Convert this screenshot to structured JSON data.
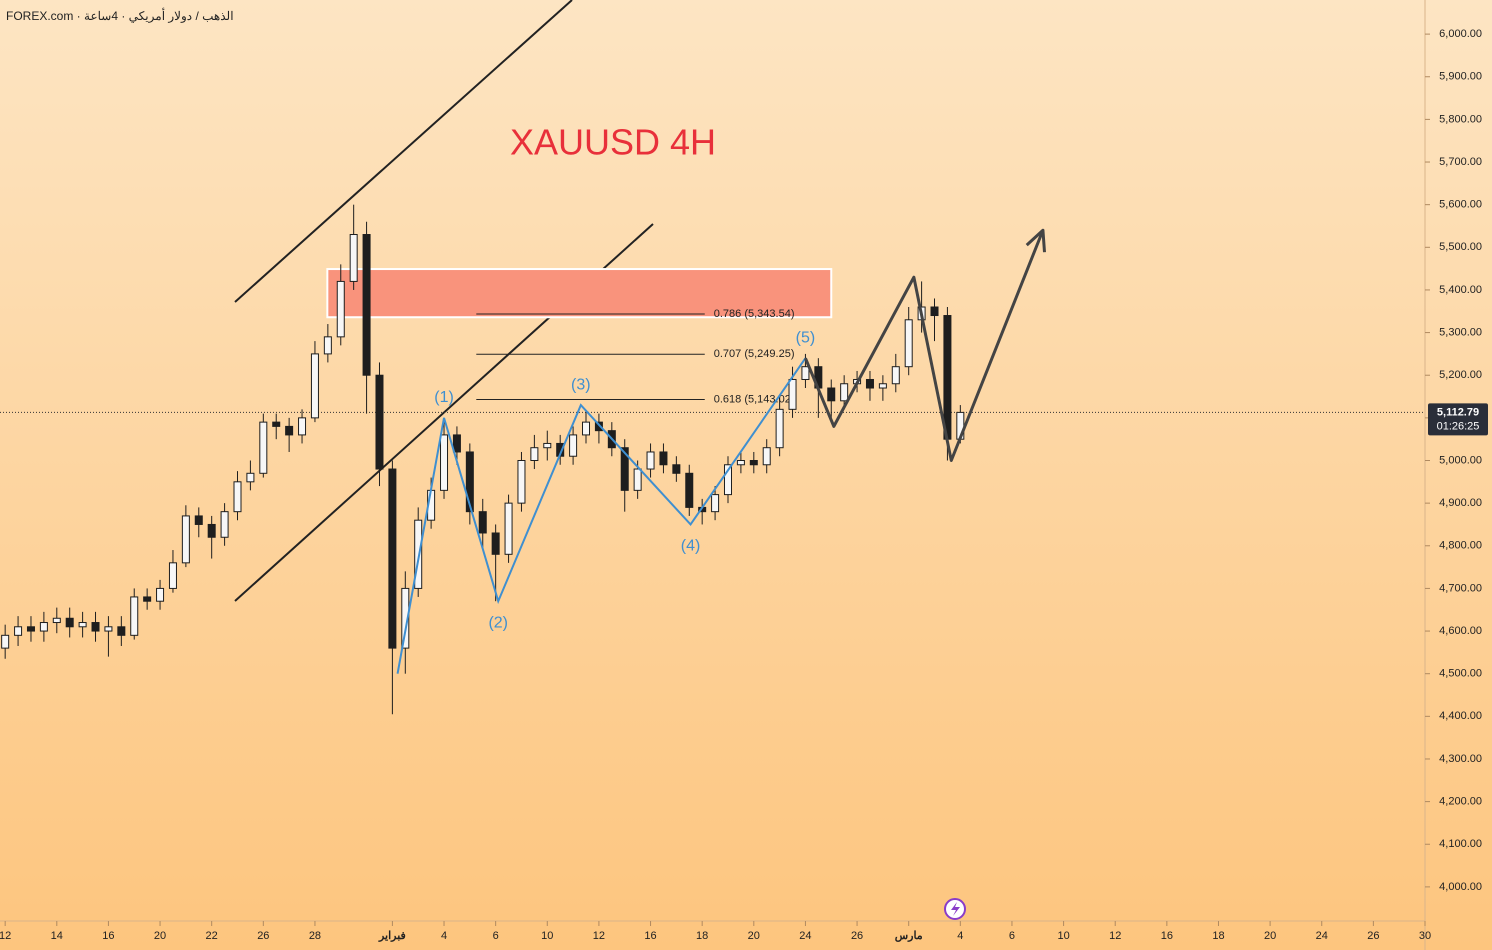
{
  "chart_data": {
    "type": "candlestick",
    "source": "FOREX.com · الذهب / دولار أمريكي · 4ساعة",
    "title": "XAUUSD 4H",
    "up_color": "#f7f7f7",
    "down_color": "#1e1e1e",
    "x": [
      0,
      0.5,
      1,
      1.5,
      2,
      2.5,
      3,
      3.5,
      4,
      4.5,
      5,
      5.5,
      6,
      6.5,
      7,
      7.5,
      8,
      8.5,
      9,
      9.5,
      10,
      10.5,
      11,
      11.5,
      12,
      12.5,
      13,
      13.5,
      14,
      14.5,
      15,
      15.5,
      16,
      16.5,
      17,
      17.5,
      18,
      18.5,
      19,
      19.5,
      20,
      20.5,
      21,
      21.5,
      22,
      22.5,
      23,
      23.5,
      24,
      24.5,
      25,
      25.5,
      26,
      26.5,
      27,
      27.5,
      28,
      28.5,
      29,
      29.5,
      30,
      30.5,
      31,
      31.5,
      32,
      32.5,
      33,
      33.5,
      34,
      34.5,
      35,
      35.5,
      36,
      36.5,
      37
    ],
    "open": [
      4560,
      4590,
      4610,
      4600,
      4620,
      4630,
      4610,
      4620,
      4600,
      4610,
      4590,
      4680,
      4670,
      4700,
      4760,
      4870,
      4850,
      4820,
      4880,
      4950,
      4970,
      5090,
      5080,
      5060,
      5100,
      5250,
      5290,
      5420,
      5530,
      5200,
      4980,
      4560,
      4700,
      4860,
      4930,
      5060,
      5020,
      4880,
      4830,
      4780,
      4900,
      5000,
      5030,
      5040,
      5010,
      5060,
      5090,
      5070,
      5030,
      4930,
      4980,
      5020,
      4990,
      4970,
      4890,
      4880,
      4920,
      4990,
      5000,
      4990,
      5030,
      5120,
      5190,
      5220,
      5170,
      5140,
      5180,
      5190,
      5170,
      5180,
      5220,
      5330,
      5360,
      5340,
      5050
    ],
    "high": [
      4615,
      4635,
      4635,
      4645,
      4655,
      4655,
      4645,
      4645,
      4635,
      4635,
      4700,
      4700,
      4720,
      4790,
      4895,
      4890,
      4870,
      4900,
      4975,
      5000,
      5110,
      5110,
      5100,
      5120,
      5280,
      5320,
      5460,
      5600,
      5560,
      5230,
      5000,
      4740,
      4890,
      4960,
      5090,
      5080,
      5040,
      4910,
      4850,
      4920,
      5020,
      5060,
      5070,
      5060,
      5080,
      5115,
      5110,
      5090,
      5050,
      5000,
      5040,
      5040,
      5010,
      4990,
      4910,
      4940,
      5010,
      5020,
      5020,
      5050,
      5150,
      5220,
      5250,
      5240,
      5190,
      5200,
      5210,
      5210,
      5200,
      5250,
      5360,
      5420,
      5380,
      5360,
      5130
    ],
    "low": [
      4535,
      4565,
      4575,
      4575,
      4595,
      4585,
      4585,
      4575,
      4540,
      4565,
      4580,
      4650,
      4650,
      4690,
      4750,
      4820,
      4770,
      4800,
      4860,
      4930,
      4960,
      5050,
      5020,
      5040,
      5090,
      5230,
      5270,
      5400,
      5110,
      4940,
      4405,
      4500,
      4680,
      4840,
      4910,
      4990,
      4850,
      4790,
      4670,
      4760,
      4880,
      4980,
      5000,
      4990,
      4990,
      5040,
      5040,
      5010,
      4880,
      4910,
      4960,
      4970,
      4950,
      4870,
      4850,
      4860,
      4900,
      4970,
      4970,
      4970,
      5010,
      5100,
      5170,
      5100,
      5100,
      5120,
      5160,
      5140,
      5140,
      5160,
      5200,
      5300,
      5280,
      5000,
      5040
    ],
    "close": [
      4590,
      4610,
      4600,
      4620,
      4630,
      4610,
      4620,
      4600,
      4610,
      4590,
      4680,
      4670,
      4700,
      4760,
      4870,
      4850,
      4820,
      4880,
      4950,
      4970,
      5090,
      5080,
      5060,
      5100,
      5250,
      5290,
      5420,
      5530,
      5200,
      4980,
      4560,
      4700,
      4860,
      4930,
      5060,
      5020,
      4880,
      4830,
      4780,
      4900,
      5000,
      5030,
      5040,
      5010,
      5060,
      5090,
      5070,
      5030,
      4930,
      4980,
      5020,
      4990,
      4970,
      4890,
      4880,
      4920,
      4990,
      5000,
      4990,
      5030,
      5120,
      5190,
      5220,
      5170,
      5140,
      5180,
      5190,
      5170,
      5180,
      5220,
      5330,
      5360,
      5340,
      5050,
      5112.79
    ],
    "last_price": {
      "value": 5112.79,
      "label": "5,112.79"
    },
    "countdown": "01:26:25",
    "xlim": [
      -0.2,
      55
    ],
    "xticks": [
      {
        "value": 0,
        "label": "12"
      },
      {
        "value": 2,
        "label": "14"
      },
      {
        "value": 4,
        "label": "16"
      },
      {
        "value": 6,
        "label": "20"
      },
      {
        "value": 8,
        "label": "22"
      },
      {
        "value": 10,
        "label": "26"
      },
      {
        "value": 12,
        "label": "28"
      },
      {
        "value": 15,
        "label": "فبراير"
      },
      {
        "value": 17,
        "label": "4"
      },
      {
        "value": 19,
        "label": "6"
      },
      {
        "value": 21,
        "label": "10"
      },
      {
        "value": 23,
        "label": "12"
      },
      {
        "value": 25,
        "label": "16"
      },
      {
        "value": 27,
        "label": "18"
      },
      {
        "value": 29,
        "label": "20"
      },
      {
        "value": 31,
        "label": "24"
      },
      {
        "value": 33,
        "label": "26"
      },
      {
        "value": 35,
        "label": "مارس"
      },
      {
        "value": 37,
        "label": "4"
      },
      {
        "value": 39,
        "label": "6"
      },
      {
        "value": 41,
        "label": "10"
      },
      {
        "value": 43,
        "label": "12"
      },
      {
        "value": 45,
        "label": "16"
      },
      {
        "value": 47,
        "label": "18"
      },
      {
        "value": 49,
        "label": "20"
      },
      {
        "value": 51,
        "label": "24"
      },
      {
        "value": 53,
        "label": "26"
      },
      {
        "value": 55,
        "label": "30"
      }
    ],
    "ylim": [
      3920,
      6080
    ],
    "yticks": [
      {
        "value": 4000,
        "label": "4,000.00"
      },
      {
        "value": 4100,
        "label": "4,100.00"
      },
      {
        "value": 4200,
        "label": "4,200.00"
      },
      {
        "value": 4300,
        "label": "4,300.00"
      },
      {
        "value": 4400,
        "label": "4,400.00"
      },
      {
        "value": 4500,
        "label": "4,500.00"
      },
      {
        "value": 4600,
        "label": "4,600.00"
      },
      {
        "value": 4700,
        "label": "4,700.00"
      },
      {
        "value": 4800,
        "label": "4,800.00"
      },
      {
        "value": 4900,
        "label": "4,900.00"
      },
      {
        "value": 5000,
        "label": "5,000.00"
      },
      {
        "value": 5100,
        "label": "5,100.00"
      },
      {
        "value": 5200,
        "label": "5,200.00"
      },
      {
        "value": 5300,
        "label": "5,300.00"
      },
      {
        "value": 5400,
        "label": "5,400.00"
      },
      {
        "value": 5500,
        "label": "5,500.00"
      },
      {
        "value": 5600,
        "label": "5,600.00"
      },
      {
        "value": 5700,
        "label": "5,700.00"
      },
      {
        "value": 5800,
        "label": "5,800.00"
      },
      {
        "value": 5900,
        "label": "5,900.00"
      },
      {
        "value": 6000,
        "label": "6,000.00"
      }
    ],
    "zone": {
      "x": [
        12.48,
        32
      ],
      "price": [
        5336,
        5449
      ],
      "color": "#f9937c"
    },
    "fib": {
      "x": [
        18.25,
        27.1
      ],
      "levels": [
        {
          "value": 5343.54,
          "label": "0.786 (5,343.54)"
        },
        {
          "value": 5249.25,
          "label": "0.707 (5,249.25)"
        },
        {
          "value": 5143.02,
          "label": "0.618 (5,143.02)"
        }
      ]
    },
    "wave": {
      "color": "#3f8fd0",
      "x": [
        15.2,
        17,
        19.1,
        22.3,
        26.55,
        31
      ],
      "price": [
        4500,
        5100,
        4670,
        5130,
        4850,
        5240
      ],
      "labels": [
        null,
        "(1)",
        "(2)",
        "(3)",
        "(4)",
        "(5)"
      ]
    },
    "projection": {
      "color": "#444444",
      "x": [
        31,
        32.1,
        35.2,
        36.65,
        40.2
      ],
      "price": [
        5240,
        5080,
        5430,
        5000,
        5540
      ]
    }
  }
}
